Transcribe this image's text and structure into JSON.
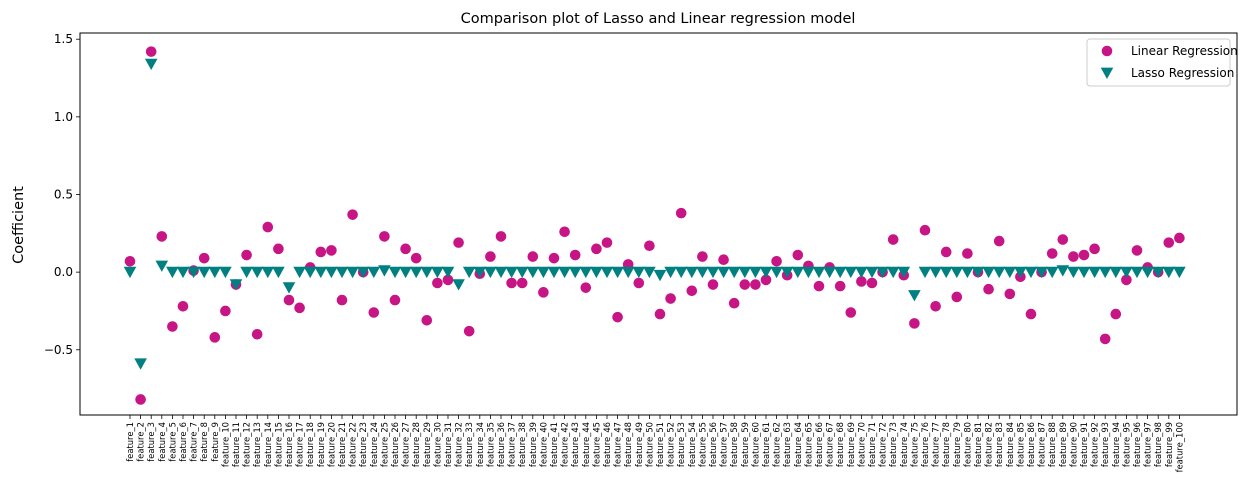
{
  "chart_data": {
    "type": "scatter",
    "title": "Comparison plot of Lasso and Linear regression model",
    "xlabel": "",
    "ylabel": "Coefficient",
    "ylim": [
      -0.92,
      1.54
    ],
    "yticks": [
      -0.5,
      0.0,
      0.5,
      1.0,
      1.5
    ],
    "ytick_labels": [
      "−0.5",
      "0.0",
      "0.5",
      "1.0",
      "1.5"
    ],
    "legend_position": "top-right",
    "grid": false,
    "categories": [
      "feature_1",
      "feature_2",
      "feature_3",
      "feature_4",
      "feature_5",
      "feature_6",
      "feature_7",
      "feature_8",
      "feature_9",
      "feature_10",
      "feature_11",
      "feature_12",
      "feature_13",
      "feature_14",
      "feature_15",
      "feature_16",
      "feature_17",
      "feature_18",
      "feature_19",
      "feature_20",
      "feature_21",
      "feature_22",
      "feature_23",
      "feature_24",
      "feature_25",
      "feature_26",
      "feature_27",
      "feature_28",
      "feature_29",
      "feature_30",
      "feature_31",
      "feature_32",
      "feature_33",
      "feature_34",
      "feature_35",
      "feature_36",
      "feature_37",
      "feature_38",
      "feature_39",
      "feature_40",
      "feature_41",
      "feature_42",
      "feature_43",
      "feature_44",
      "feature_45",
      "feature_46",
      "feature_47",
      "feature_48",
      "feature_49",
      "feature_50",
      "feature_51",
      "feature_52",
      "feature_53",
      "feature_54",
      "feature_55",
      "feature_56",
      "feature_57",
      "feature_58",
      "feature_59",
      "feature_60",
      "feature_61",
      "feature_62",
      "feature_63",
      "feature_64",
      "feature_65",
      "feature_66",
      "feature_67",
      "feature_68",
      "feature_69",
      "feature_70",
      "feature_71",
      "feature_72",
      "feature_73",
      "feature_74",
      "feature_75",
      "feature_76",
      "feature_77",
      "feature_78",
      "feature_79",
      "feature_80",
      "feature_81",
      "feature_82",
      "feature_83",
      "feature_84",
      "feature_85",
      "feature_86",
      "feature_87",
      "feature_88",
      "feature_89",
      "feature_90",
      "feature_91",
      "feature_92",
      "feature_93",
      "feature_94",
      "feature_95",
      "feature_96",
      "feature_97",
      "feature_98",
      "feature_99",
      "feature_100"
    ],
    "series": [
      {
        "name": "Linear Regression",
        "marker": "circle",
        "color": "#c71585",
        "values": [
          0.07,
          -0.82,
          1.42,
          0.23,
          -0.35,
          -0.22,
          0.01,
          0.09,
          -0.42,
          -0.25,
          -0.08,
          0.11,
          -0.4,
          0.29,
          0.15,
          -0.18,
          -0.23,
          0.03,
          0.13,
          0.14,
          -0.18,
          0.37,
          0.0,
          -0.26,
          0.23,
          -0.18,
          0.15,
          0.09,
          -0.31,
          -0.07,
          -0.05,
          0.19,
          -0.38,
          -0.01,
          0.1,
          0.23,
          -0.07,
          -0.07,
          0.1,
          -0.13,
          0.09,
          0.26,
          0.11,
          -0.1,
          0.15,
          0.19,
          -0.29,
          0.05,
          -0.07,
          0.17,
          -0.27,
          -0.17,
          0.38,
          -0.12,
          0.1,
          -0.08,
          0.08,
          -0.2,
          -0.08,
          -0.08,
          -0.05,
          0.07,
          -0.02,
          0.11,
          0.04,
          -0.09,
          0.03,
          -0.09,
          -0.26,
          -0.06,
          -0.07,
          0.0,
          0.21,
          -0.02,
          -0.33,
          0.27,
          -0.22,
          0.13,
          -0.16,
          0.12,
          0.0,
          -0.11,
          0.2,
          -0.14,
          -0.03,
          -0.27,
          0.0,
          0.12,
          0.21,
          0.1,
          0.11,
          0.15,
          -0.43,
          -0.27,
          -0.05,
          0.14,
          0.03,
          0.0,
          0.19,
          0.22
        ]
      },
      {
        "name": "Lasso Regression",
        "marker": "triangle-down",
        "color": "#008080",
        "values": [
          0.0,
          -0.59,
          1.34,
          0.04,
          0.0,
          0.0,
          0.0,
          0.0,
          0.0,
          0.0,
          -0.08,
          0.0,
          0.0,
          0.0,
          0.0,
          -0.1,
          0.0,
          0.0,
          0.0,
          0.0,
          0.0,
          0.0,
          0.0,
          0.0,
          0.01,
          0.0,
          0.0,
          0.0,
          0.0,
          0.0,
          0.0,
          -0.08,
          0.0,
          0.0,
          0.0,
          0.0,
          0.0,
          0.0,
          0.0,
          0.0,
          0.0,
          0.0,
          0.0,
          0.0,
          0.0,
          0.0,
          0.0,
          0.0,
          0.0,
          0.0,
          -0.02,
          0.0,
          0.0,
          0.0,
          0.0,
          0.0,
          0.0,
          0.0,
          0.0,
          0.0,
          0.0,
          0.0,
          0.0,
          0.0,
          0.0,
          0.0,
          0.0,
          0.0,
          0.0,
          0.0,
          0.0,
          0.0,
          0.0,
          0.0,
          -0.15,
          0.0,
          0.0,
          0.0,
          0.0,
          0.0,
          0.0,
          0.0,
          0.0,
          0.0,
          0.0,
          0.0,
          0.0,
          0.0,
          0.01,
          0.0,
          0.0,
          0.0,
          0.0,
          0.0,
          0.0,
          0.0,
          0.0,
          0.0,
          0.0,
          0.0
        ]
      }
    ]
  }
}
